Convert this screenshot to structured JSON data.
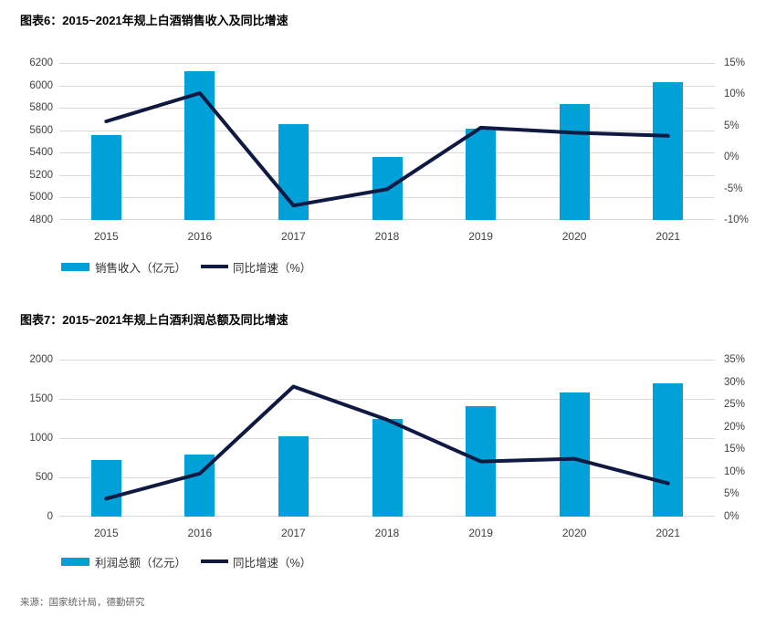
{
  "source": "来源：国家统计局，德勤研究",
  "colors": {
    "bar": "#00A1D8",
    "line": "#0F1941",
    "grid": "#D9D9D9",
    "axis_text": "#404040",
    "title_text": "#000000",
    "source_text": "#666666"
  },
  "chart_data": [
    {
      "type": "bar+line combo",
      "title": "图表6：2015~2021年规上白酒销售收入及同比增速",
      "categories": [
        "2015",
        "2016",
        "2017",
        "2018",
        "2019",
        "2020",
        "2021"
      ],
      "series": [
        {
          "name": "销售收入（亿元）",
          "type": "bar",
          "axis": "left",
          "values": [
            5559,
            6126,
            5654,
            5364,
            5618,
            5836,
            6033
          ]
        },
        {
          "name": "同比增速（%）",
          "type": "line",
          "axis": "right",
          "values": [
            5.7,
            10.2,
            -7.7,
            -5.1,
            4.7,
            3.9,
            3.4
          ]
        }
      ],
      "left_axis": {
        "min": 4800,
        "max": 6200,
        "step": 200,
        "ticks": [
          "6200",
          "6000",
          "5800",
          "5600",
          "5400",
          "5200",
          "5000",
          "4800"
        ]
      },
      "right_axis": {
        "min": -10,
        "max": 15,
        "step": 5,
        "ticks": [
          "15%",
          "10%",
          "5%",
          "0%",
          "-5%",
          "-10%"
        ]
      },
      "grid": true,
      "legend_position": "bottom-left"
    },
    {
      "type": "bar+line combo",
      "title": "图表7：2015~2021年规上白酒利润总额及同比增速",
      "categories": [
        "2015",
        "2016",
        "2017",
        "2018",
        "2019",
        "2020",
        "2021"
      ],
      "series": [
        {
          "name": "利润总额（亿元）",
          "type": "bar",
          "axis": "left",
          "values": [
            727,
            797,
            1028,
            1250,
            1404,
            1585,
            1702
          ]
        },
        {
          "name": "同比增速（%）",
          "type": "line",
          "axis": "right",
          "values": [
            4.0,
            9.6,
            29.0,
            21.6,
            12.3,
            12.9,
            7.4
          ]
        }
      ],
      "left_axis": {
        "min": 0,
        "max": 2000,
        "step": 500,
        "ticks": [
          "2000",
          "1500",
          "1000",
          "500",
          "0"
        ]
      },
      "right_axis": {
        "min": 0,
        "max": 35,
        "step": 5,
        "ticks": [
          "35%",
          "30%",
          "25%",
          "20%",
          "15%",
          "10%",
          "5%",
          "0%"
        ]
      },
      "grid": true,
      "legend_position": "bottom-left"
    }
  ]
}
